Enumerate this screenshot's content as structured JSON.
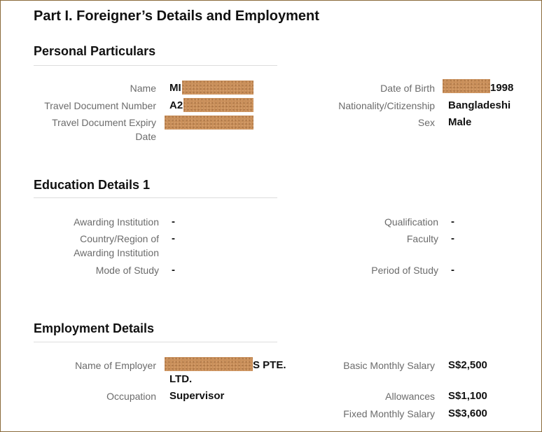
{
  "part_title": "Part I. Foreigner’s Details and Employment",
  "personal": {
    "title": "Personal Particulars",
    "name_label": "Name",
    "name_value": "MI",
    "travel_doc_label": "Travel Document Number",
    "travel_doc_value": "A2",
    "expiry_label_line1": "Travel Document Expiry",
    "expiry_label_line2": "Date",
    "dob_label": "Date of Birth",
    "dob_value": "1998",
    "nationality_label": "Nationality/Citizenship",
    "nationality_value": "Bangladeshi",
    "sex_label": "Sex",
    "sex_value": "Male"
  },
  "education": {
    "title": "Education Details 1",
    "institution_label": "Awarding Institution",
    "institution_value": "-",
    "country_label_line1": "Country/Region of",
    "country_label_line2": "Awarding Institution",
    "country_value": "-",
    "mode_label": "Mode of Study",
    "mode_value": "-",
    "qualification_label": "Qualification",
    "qualification_value": "-",
    "faculty_label": "Faculty",
    "faculty_value": "-",
    "period_label": "Period of Study",
    "period_value": "-"
  },
  "employment": {
    "title": "Employment Details",
    "employer_label": "Name of Employer",
    "employer_value_line1": "S PTE.",
    "employer_value_line2": "LTD.",
    "occupation_label": "Occupation",
    "occupation_value": "Supervisor",
    "salary_label": "Basic Monthly Salary",
    "salary_value": "S$2,500",
    "allowances_label": "Allowances",
    "allowances_value": "S$1,100",
    "fixed_label": "Fixed Monthly Salary",
    "fixed_value": "S$3,600"
  },
  "redaction_color": "#c98f5a"
}
